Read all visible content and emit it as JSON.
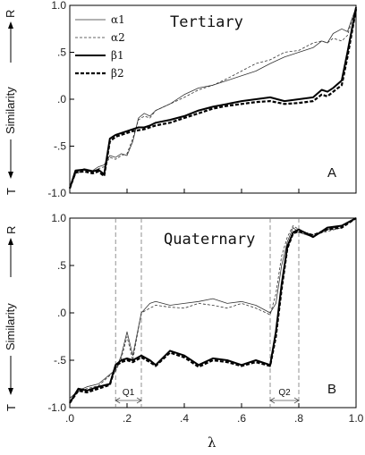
{
  "chart_data": [
    {
      "type": "line",
      "panel": "A",
      "title": "Tertiary",
      "xlabel": "λ",
      "ylabel": "Similarity",
      "y_top_label": "R",
      "y_bottom_label": "T",
      "xlim": [
        0,
        1
      ],
      "ylim": [
        -1,
        1
      ],
      "yticks": [
        "1.0",
        ".5",
        ".0",
        "-.5",
        "-1.0"
      ],
      "legend": "top-left",
      "series": [
        {
          "name": "α1",
          "style": "thin-solid",
          "x": [
            0,
            0.02,
            0.05,
            0.08,
            0.1,
            0.12,
            0.14,
            0.16,
            0.18,
            0.2,
            0.22,
            0.24,
            0.26,
            0.28,
            0.3,
            0.35,
            0.4,
            0.45,
            0.5,
            0.55,
            0.6,
            0.65,
            0.7,
            0.75,
            0.8,
            0.85,
            0.88,
            0.9,
            0.92,
            0.95,
            0.97,
            1.0
          ],
          "y": [
            -0.95,
            -0.78,
            -0.74,
            -0.76,
            -0.72,
            -0.7,
            -0.6,
            -0.62,
            -0.58,
            -0.6,
            -0.45,
            -0.2,
            -0.15,
            -0.18,
            -0.12,
            -0.05,
            0.05,
            0.12,
            0.15,
            0.2,
            0.25,
            0.3,
            0.38,
            0.45,
            0.5,
            0.55,
            0.62,
            0.6,
            0.7,
            0.75,
            0.72,
            0.98
          ]
        },
        {
          "name": "α2",
          "style": "thin-dashed",
          "x": [
            0,
            0.02,
            0.05,
            0.08,
            0.1,
            0.12,
            0.14,
            0.16,
            0.18,
            0.2,
            0.22,
            0.24,
            0.26,
            0.28,
            0.3,
            0.35,
            0.4,
            0.45,
            0.5,
            0.55,
            0.6,
            0.65,
            0.7,
            0.75,
            0.8,
            0.85,
            0.88,
            0.9,
            0.92,
            0.95,
            0.97,
            1.0
          ],
          "y": [
            -0.95,
            -0.8,
            -0.75,
            -0.78,
            -0.74,
            -0.72,
            -0.62,
            -0.64,
            -0.6,
            -0.58,
            -0.42,
            -0.22,
            -0.18,
            -0.2,
            -0.12,
            -0.05,
            0.02,
            0.1,
            0.15,
            0.22,
            0.3,
            0.38,
            0.42,
            0.5,
            0.52,
            0.6,
            0.62,
            0.6,
            0.65,
            0.62,
            0.68,
            0.98
          ]
        },
        {
          "name": "β1",
          "style": "thick-solid",
          "x": [
            0,
            0.02,
            0.05,
            0.08,
            0.1,
            0.12,
            0.14,
            0.16,
            0.18,
            0.2,
            0.22,
            0.24,
            0.26,
            0.28,
            0.3,
            0.35,
            0.4,
            0.45,
            0.5,
            0.55,
            0.6,
            0.65,
            0.7,
            0.75,
            0.8,
            0.85,
            0.88,
            0.9,
            0.92,
            0.95,
            0.97,
            1.0
          ],
          "y": [
            -0.95,
            -0.76,
            -0.75,
            -0.77,
            -0.75,
            -0.8,
            -0.42,
            -0.38,
            -0.36,
            -0.34,
            -0.32,
            -0.3,
            -0.3,
            -0.28,
            -0.25,
            -0.22,
            -0.18,
            -0.12,
            -0.08,
            -0.05,
            -0.02,
            0.0,
            0.02,
            -0.02,
            0.0,
            0.02,
            0.1,
            0.08,
            0.12,
            0.2,
            0.5,
            0.98
          ]
        },
        {
          "name": "β2",
          "style": "thick-dashed",
          "x": [
            0,
            0.02,
            0.05,
            0.08,
            0.1,
            0.12,
            0.14,
            0.16,
            0.18,
            0.2,
            0.22,
            0.24,
            0.26,
            0.28,
            0.3,
            0.35,
            0.4,
            0.45,
            0.5,
            0.55,
            0.6,
            0.65,
            0.7,
            0.75,
            0.8,
            0.85,
            0.88,
            0.9,
            0.92,
            0.95,
            0.97,
            1.0
          ],
          "y": [
            -0.95,
            -0.78,
            -0.77,
            -0.79,
            -0.77,
            -0.82,
            -0.45,
            -0.4,
            -0.38,
            -0.36,
            -0.34,
            -0.33,
            -0.32,
            -0.3,
            -0.28,
            -0.25,
            -0.2,
            -0.15,
            -0.1,
            -0.07,
            -0.05,
            -0.03,
            -0.02,
            -0.05,
            -0.04,
            -0.02,
            0.05,
            0.03,
            0.08,
            0.15,
            0.45,
            0.96
          ]
        }
      ]
    },
    {
      "type": "line",
      "panel": "B",
      "title": "Quaternary",
      "xlabel": "λ",
      "ylabel": "Similarity",
      "y_top_label": "R",
      "y_bottom_label": "T",
      "xlim": [
        0,
        1
      ],
      "ylim": [
        -1,
        1
      ],
      "xticks": [
        ".0",
        ".2",
        ".4",
        ".6",
        ".8",
        "1.0"
      ],
      "yticks": [
        "1.0",
        ".5",
        ".0",
        "-.5",
        "-1.0"
      ],
      "annotations": [
        {
          "label": "Q1",
          "x_range": [
            0.16,
            0.25
          ]
        },
        {
          "label": "Q2",
          "x_range": [
            0.7,
            0.8
          ]
        }
      ],
      "series": [
        {
          "name": "α1",
          "style": "thin-solid",
          "x": [
            0,
            0.03,
            0.06,
            0.1,
            0.14,
            0.16,
            0.18,
            0.2,
            0.22,
            0.25,
            0.28,
            0.3,
            0.35,
            0.4,
            0.45,
            0.5,
            0.55,
            0.6,
            0.65,
            0.7,
            0.72,
            0.74,
            0.76,
            0.78,
            0.8,
            0.85,
            0.9,
            0.95,
            1.0
          ],
          "y": [
            -0.9,
            -0.82,
            -0.78,
            -0.75,
            -0.65,
            -0.6,
            -0.45,
            -0.2,
            -0.45,
            0.0,
            0.1,
            0.12,
            0.08,
            0.1,
            0.12,
            0.15,
            0.1,
            0.12,
            0.08,
            0.0,
            0.1,
            0.5,
            0.75,
            0.9,
            0.85,
            0.8,
            0.88,
            0.92,
            1.0
          ]
        },
        {
          "name": "α2",
          "style": "thin-dashed",
          "x": [
            0,
            0.03,
            0.06,
            0.1,
            0.14,
            0.16,
            0.18,
            0.2,
            0.22,
            0.25,
            0.28,
            0.3,
            0.35,
            0.4,
            0.45,
            0.5,
            0.55,
            0.6,
            0.65,
            0.7,
            0.72,
            0.74,
            0.76,
            0.78,
            0.8,
            0.85,
            0.9,
            0.95,
            1.0
          ],
          "y": [
            -0.9,
            -0.83,
            -0.8,
            -0.77,
            -0.66,
            -0.62,
            -0.48,
            -0.25,
            -0.5,
            0.0,
            0.05,
            0.08,
            0.06,
            0.05,
            0.1,
            0.08,
            0.05,
            0.1,
            0.05,
            -0.02,
            0.2,
            0.6,
            0.8,
            0.92,
            0.88,
            0.82,
            0.86,
            0.9,
            1.0
          ]
        },
        {
          "name": "β1",
          "style": "thick-solid",
          "x": [
            0,
            0.03,
            0.06,
            0.1,
            0.14,
            0.16,
            0.18,
            0.2,
            0.22,
            0.25,
            0.28,
            0.3,
            0.35,
            0.4,
            0.45,
            0.5,
            0.55,
            0.6,
            0.65,
            0.7,
            0.72,
            0.74,
            0.76,
            0.78,
            0.8,
            0.85,
            0.9,
            0.95,
            1.0
          ],
          "y": [
            -0.95,
            -0.8,
            -0.82,
            -0.78,
            -0.75,
            -0.55,
            -0.5,
            -0.48,
            -0.5,
            -0.45,
            -0.5,
            -0.55,
            -0.4,
            -0.45,
            -0.55,
            -0.48,
            -0.5,
            -0.55,
            -0.5,
            -0.55,
            -0.2,
            0.3,
            0.7,
            0.85,
            0.88,
            0.8,
            0.9,
            0.92,
            1.0
          ]
        },
        {
          "name": "β2",
          "style": "thick-dashed",
          "x": [
            0,
            0.03,
            0.06,
            0.1,
            0.14,
            0.16,
            0.18,
            0.2,
            0.22,
            0.25,
            0.28,
            0.3,
            0.35,
            0.4,
            0.45,
            0.5,
            0.55,
            0.6,
            0.65,
            0.7,
            0.72,
            0.74,
            0.76,
            0.78,
            0.8,
            0.85,
            0.9,
            0.95,
            1.0
          ],
          "y": [
            -0.95,
            -0.82,
            -0.84,
            -0.8,
            -0.76,
            -0.56,
            -0.52,
            -0.5,
            -0.52,
            -0.47,
            -0.52,
            -0.56,
            -0.42,
            -0.47,
            -0.57,
            -0.5,
            -0.52,
            -0.56,
            -0.52,
            -0.56,
            -0.25,
            0.25,
            0.68,
            0.84,
            0.86,
            0.82,
            0.88,
            0.9,
            1.0
          ]
        }
      ]
    }
  ]
}
